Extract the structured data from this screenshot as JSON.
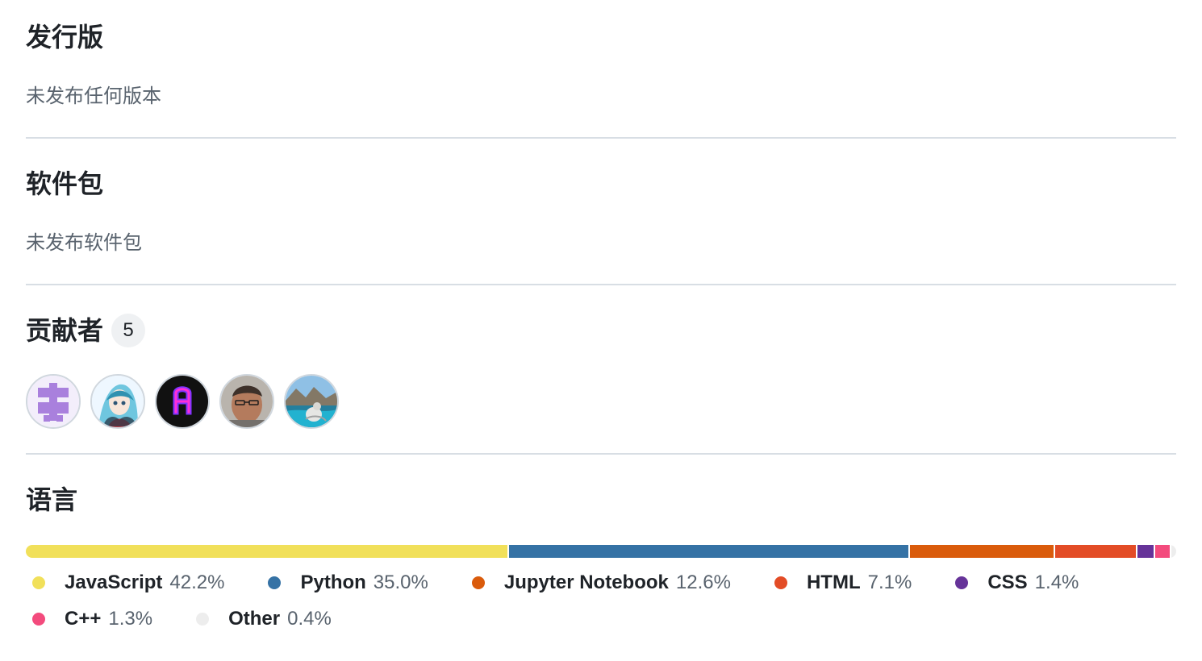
{
  "releases": {
    "title": "发行版",
    "empty_text": "未发布任何版本"
  },
  "packages": {
    "title": "软件包",
    "empty_text": "未发布软件包"
  },
  "contributors": {
    "title": "贡献者",
    "count": "5",
    "avatars": [
      {
        "name": "purple-pattern-avatar"
      },
      {
        "name": "anime-character-avatar"
      },
      {
        "name": "neon-letter-avatar"
      },
      {
        "name": "person-photo-avatar"
      },
      {
        "name": "lake-landscape-avatar"
      }
    ]
  },
  "languages": {
    "title": "语言",
    "items": [
      {
        "name": "JavaScript",
        "percent_text": "42.2%",
        "percent": 42.2,
        "color": "#f1e05a"
      },
      {
        "name": "Python",
        "percent_text": "35.0%",
        "percent": 35.0,
        "color": "#3572a5"
      },
      {
        "name": "Jupyter Notebook",
        "percent_text": "12.6%",
        "percent": 12.6,
        "color": "#da5b0b"
      },
      {
        "name": "HTML",
        "percent_text": "7.1%",
        "percent": 7.1,
        "color": "#e34c26"
      },
      {
        "name": "CSS",
        "percent_text": "1.4%",
        "percent": 1.4,
        "color": "#663399"
      },
      {
        "name": "C++",
        "percent_text": "1.3%",
        "percent": 1.3,
        "color": "#f34b7d"
      },
      {
        "name": "Other",
        "percent_text": "0.4%",
        "percent": 0.4,
        "color": "#ededed"
      }
    ]
  }
}
